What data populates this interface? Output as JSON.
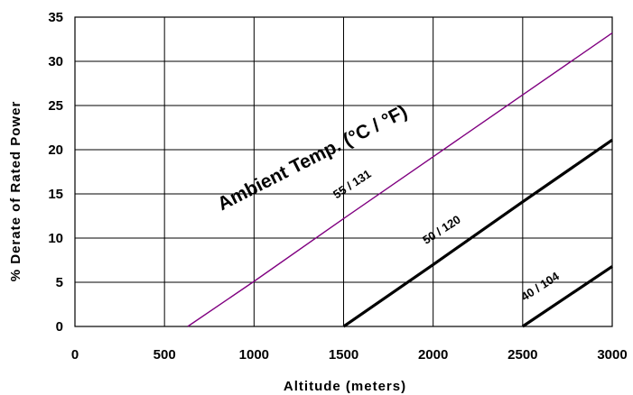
{
  "chart_data": {
    "type": "line",
    "title": "",
    "xlabel": "Altitude (meters)",
    "ylabel": "% Derate of Rated Power",
    "xlim": [
      0,
      3000
    ],
    "ylim": [
      0,
      35
    ],
    "xticks": [
      0,
      500,
      1000,
      1500,
      2000,
      2500,
      3000
    ],
    "yticks": [
      0,
      5,
      10,
      15,
      20,
      25,
      30,
      35
    ],
    "grid": true,
    "legend": "none",
    "annotation": "Ambient Temp. (°C / °F)",
    "series": [
      {
        "name": "55 / 131",
        "color": "#800080",
        "x": [
          630,
          1000,
          1500,
          2000,
          2500,
          3000
        ],
        "y": [
          0,
          5.1,
          12.2,
          19.2,
          26.2,
          33.2
        ]
      },
      {
        "name": "50 / 120",
        "color": "#000000",
        "x": [
          1500,
          2000,
          2500,
          3000
        ],
        "y": [
          0,
          7.0,
          14.1,
          21.1
        ]
      },
      {
        "name": "40 / 104",
        "color": "#000000",
        "x": [
          2500,
          2750,
          3000
        ],
        "y": [
          0,
          3.4,
          6.8
        ]
      }
    ]
  }
}
